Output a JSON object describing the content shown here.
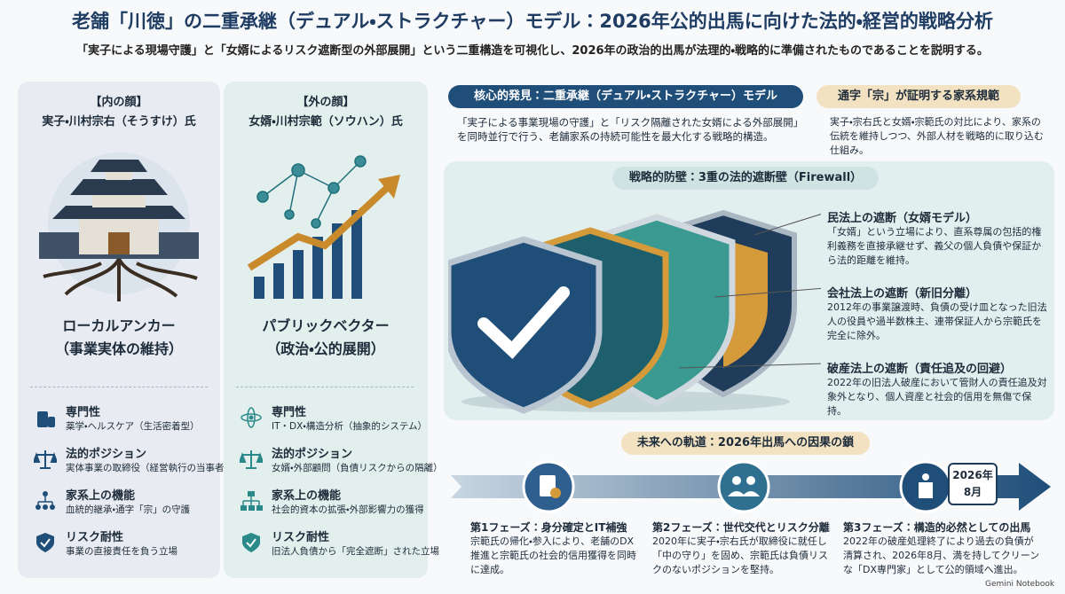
{
  "header": {
    "title": "老舗「川徳」の二重承継（デュアル・ストラクチャー）モデル：2026年公的出馬に向けた法的・経営的戦略分析",
    "subtitle": "「実子による現場守護」と「女婿によるリスク遮断型の外部展開」という二重構造を可視化し、2026年の政治的出馬が法理的・戦略的に準備されたものであることを説明する。"
  },
  "left_panel": {
    "label": "【内の顔】",
    "name": "実子・川村宗右（そうすけ）氏",
    "role": "ローカルアンカー",
    "role_sub": "（事業実体の維持）",
    "items": [
      {
        "title": "専門性",
        "desc": "薬学・ヘルスケア（生活密着型）"
      },
      {
        "title": "法的ポジション",
        "desc": "実体事業の取締役（経営執行の当事者）"
      },
      {
        "title": "家系上の機能",
        "desc": "血統的継承・通字「宗」の守護"
      },
      {
        "title": "リスク耐性",
        "desc": "事業の直接責任を負う立場"
      }
    ]
  },
  "right_panel": {
    "label": "【外の顔】",
    "name": "女婿・川村宗範（ソウハン）氏",
    "role": "パブリックベクター",
    "role_sub": "（政治・公的展開）",
    "items": [
      {
        "title": "専門性",
        "desc": "IT・DX・構造分析（抽象的システム）"
      },
      {
        "title": "法的ポジション",
        "desc": "女婿・外部顧問（負債リスクからの隔離）"
      },
      {
        "title": "家系上の機能",
        "desc": "社会的資本の拡張・外部影響力の獲得"
      },
      {
        "title": "リスク耐性",
        "desc": "旧法人負債から「完全遮断」された立場"
      }
    ]
  },
  "key_finding": {
    "title": "核心的発見：二重承継（デュアル・ストラクチャー）モデル",
    "text": "「実子による事業現場の守護」と「リスク隔離された女婿による外部展開」を同時並行で行う、老舗家系の持続可能性を最大化する戦略的構造。"
  },
  "name_rule": {
    "title": "通字「宗」が証明する家系規範",
    "text": "実子・宗右氏と女婿・宗範氏の対比により、家系の伝統を維持しつつ、外部人材を戦略的に取り込む仕組み。"
  },
  "firewall": {
    "title": "戦略的防壁：3重の法的遮断壁（Firewall）",
    "layers": [
      {
        "title": "民法上の遮断（女婿モデル）",
        "text": "「女婿」という立場により、直系尊属の包括的権利義務を直接承継せず、義父の個人負債や保証から法的距離を維持。"
      },
      {
        "title": "会社法上の遮断（新旧分離）",
        "text": "2012年の事業譲渡時、負債の受け皿となった旧法人の役員や過半数株主、連帯保証人から宗範氏を完全に除外。"
      },
      {
        "title": "破産法上の遮断（責任追及の回避）",
        "text": "2022年の旧法人破産において管財人の責任追及対象外となり、個人資産と社会的信用を無傷で保持。"
      }
    ]
  },
  "timeline": {
    "title": "未来への軌道：2026年出馬への因果の鎖",
    "badge_year": "2026年",
    "badge_month": "8月",
    "phases": [
      {
        "title": "第1フェーズ：身分確定とIT補強",
        "text": "宗範氏の帰化・参入により、老舗のDX推進と宗範氏の社会的信用獲得を同時に達成。"
      },
      {
        "title": "第2フェーズ：世代交代とリスク分離",
        "text": "2020年に実子・宗右氏が取締役に就任し「中の守り」を固め、宗範氏は負債リスクのないポジションを堅持。"
      },
      {
        "title": "第3フェーズ：構造的必然としての出馬",
        "text": "2022年の破産処理終了により過去の負債が清算され、2026年8月、満を持してクリーンな「DX専門家」として公的領域へ進出。"
      }
    ]
  },
  "footer": {
    "brand": "Gemini Notebook"
  }
}
